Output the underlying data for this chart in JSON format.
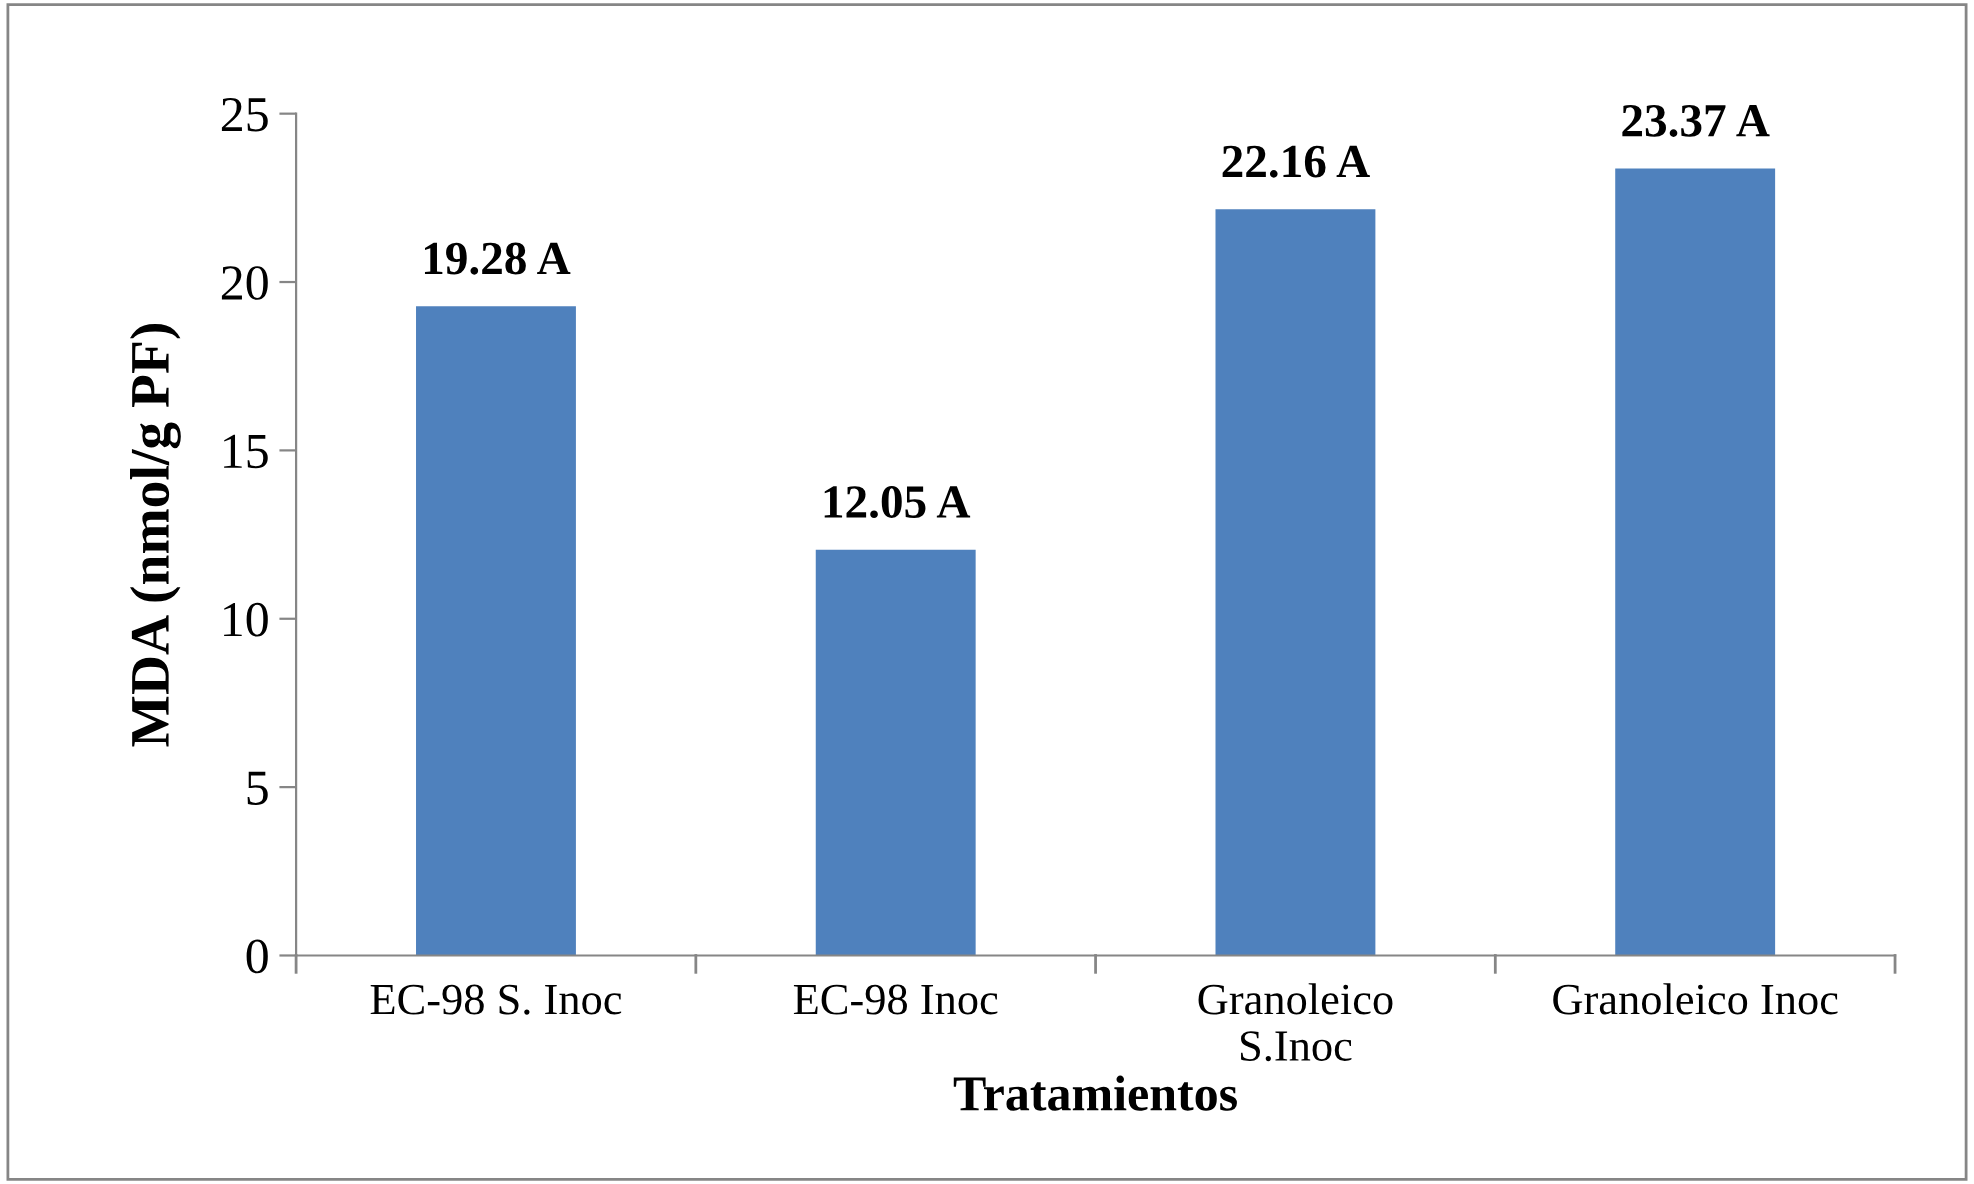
{
  "chart_data": {
    "type": "bar",
    "xlabel": "Tratamientos",
    "ylabel": "MDA (nmol/g PF)",
    "categories": [
      "EC-98 S. Inoc",
      "EC-98 Inoc",
      "Granoleico\nS.Inoc",
      "Granoleico Inoc"
    ],
    "values": [
      19.28,
      12.05,
      22.16,
      23.37
    ],
    "value_labels": [
      "19.28 A",
      "12.05 A",
      "22.16 A",
      "23.37 A"
    ],
    "color": "#4f81bd",
    "ylim": [
      0,
      25
    ],
    "yticks": [
      0,
      5,
      10,
      15,
      20,
      25
    ],
    "grid": false,
    "legend": false
  }
}
